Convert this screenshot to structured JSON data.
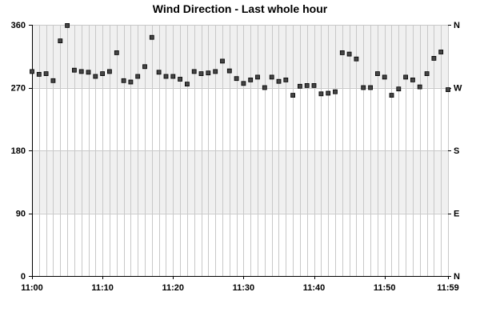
{
  "chart_data": {
    "type": "scatter",
    "title": "Wind Direction - Last whole hour",
    "xlabel": "",
    "ylabel": "",
    "x_tick_labels": [
      "11:00",
      "11:10",
      "11:20",
      "11:30",
      "11:40",
      "11:50",
      "11:59"
    ],
    "x_tick_minutes": [
      0,
      10,
      20,
      30,
      40,
      50,
      59
    ],
    "ylim": [
      0,
      360
    ],
    "y_ticks": [
      0,
      90,
      180,
      270,
      360
    ],
    "y_right_labels": [
      "N",
      "E",
      "S",
      "W",
      "N"
    ],
    "grid": true,
    "series": [
      {
        "x": [
          0,
          1,
          2,
          3,
          4,
          5,
          6,
          7,
          8,
          9,
          10,
          11,
          12,
          13,
          14,
          15,
          16,
          17,
          18,
          19,
          20,
          21,
          22,
          23,
          24,
          25,
          26,
          27,
          28,
          29,
          30,
          31,
          32,
          33,
          34,
          35,
          36,
          37,
          38,
          39,
          40,
          41,
          42,
          43,
          44,
          45,
          46,
          47,
          48,
          49,
          50,
          51,
          52,
          53,
          54,
          55,
          56,
          57,
          58,
          59
        ],
        "values": [
          293,
          289,
          290,
          280,
          337,
          359,
          295,
          293,
          292,
          286,
          290,
          293,
          320,
          280,
          278,
          286,
          300,
          342,
          292,
          286,
          286,
          282,
          275,
          293,
          290,
          291,
          293,
          308,
          294,
          283,
          276,
          281,
          285,
          270,
          285,
          279,
          281,
          259,
          272,
          273,
          273,
          261,
          262,
          264,
          320,
          318,
          311,
          270,
          270,
          290,
          285,
          259,
          268,
          285,
          281,
          271,
          290,
          312,
          321,
          267
        ],
        "color": "#444444"
      }
    ],
    "colors": {
      "band": "#f0f0f0",
      "grid": "#c8c8c8",
      "axis": "#000000",
      "marker_fill": "#444444",
      "marker_stroke": "#000000"
    }
  }
}
